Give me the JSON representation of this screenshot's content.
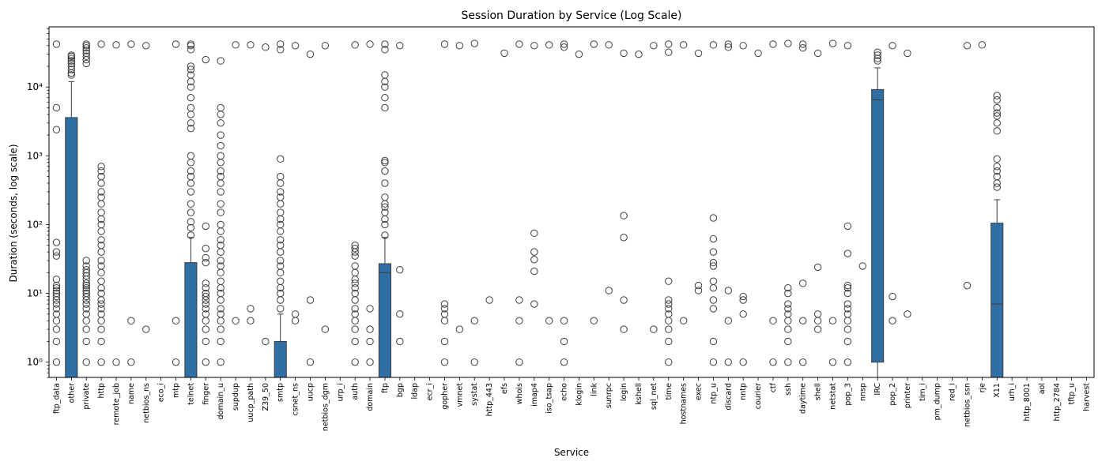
{
  "chart_data": {
    "type": "box",
    "title": "Session Duration by Service (Log Scale)",
    "xlabel": "Service",
    "ylabel": "Duration (seconds, log scale)",
    "y_scale": "log",
    "ylim": [
      0.6,
      75000
    ],
    "y_ticks": [
      1,
      10,
      100,
      1000,
      10000
    ],
    "y_tick_labels": [
      "10⁰",
      "10¹",
      "10²",
      "10³",
      "10⁴"
    ],
    "box_color": "#2f6fa3",
    "categories": [
      "ftp_data",
      "other",
      "private",
      "http",
      "remote_job",
      "name",
      "netbios_ns",
      "eco_i",
      "mtp",
      "telnet",
      "finger",
      "domain_u",
      "supdup",
      "uucp_path",
      "Z39_50",
      "smtp",
      "csnet_ns",
      "uucp",
      "netbios_dgm",
      "urp_i",
      "auth",
      "domain",
      "ftp",
      "bgp",
      "ldap",
      "ecr_i",
      "gopher",
      "vmnet",
      "systat",
      "http_443",
      "efs",
      "whois",
      "imap4",
      "iso_tsap",
      "echo",
      "klogin",
      "link",
      "sunrpc",
      "login",
      "kshell",
      "sql_net",
      "time",
      "hostnames",
      "exec",
      "ntp_u",
      "discard",
      "nntp",
      "courier",
      "ctf",
      "ssh",
      "daytime",
      "shell",
      "netstat",
      "pop_3",
      "nnsp",
      "IRC",
      "pop_2",
      "printer",
      "tim_i",
      "pm_dump",
      "red_i",
      "netbios_ssn",
      "rje",
      "X11",
      "urh_i",
      "http_8001",
      "aol",
      "http_2784",
      "tftp_u",
      "harvest"
    ],
    "boxes": [
      {
        "category": "other",
        "q1": 0.6,
        "median": 0.6,
        "q3": 3600,
        "whisker_low": 0.6,
        "whisker_high": 12000
      },
      {
        "category": "telnet",
        "q1": 0.6,
        "median": 0.6,
        "q3": 28,
        "whisker_low": 0.6,
        "whisker_high": 65
      },
      {
        "category": "smtp",
        "q1": 0.6,
        "median": 0.6,
        "q3": 2,
        "whisker_low": 0.6,
        "whisker_high": 5
      },
      {
        "category": "ftp",
        "q1": 0.6,
        "median": 20,
        "q3": 27,
        "whisker_low": 0.6,
        "whisker_high": 65
      },
      {
        "category": "IRC",
        "q1": 1,
        "median": 6500,
        "q3": 9200,
        "whisker_low": 0.6,
        "whisker_high": 19000
      },
      {
        "category": "X11",
        "q1": 0.6,
        "median": 7,
        "q3": 105,
        "whisker_low": 0.6,
        "whisker_high": 230
      }
    ],
    "outliers": {
      "ftp_data": [
        1,
        2,
        3,
        4,
        5,
        6,
        7,
        8,
        9,
        10,
        11,
        12,
        13,
        16,
        35,
        40,
        55,
        2400,
        5000,
        42000
      ],
      "other": [
        15000,
        16000,
        18000,
        20000,
        22000,
        24000,
        26000,
        28000,
        29000
      ],
      "private": [
        1,
        2,
        3,
        4,
        5,
        6,
        7,
        8,
        9,
        10,
        11,
        12,
        13,
        14,
        16,
        18,
        20,
        22,
        25,
        30,
        22000,
        25000,
        28000,
        31000,
        34000,
        37000,
        40000,
        42000
      ],
      "http": [
        1,
        2,
        3,
        4,
        5,
        6,
        7,
        8,
        10,
        12,
        15,
        20,
        25,
        30,
        40,
        50,
        60,
        80,
        100,
        120,
        150,
        200,
        250,
        300,
        400,
        500,
        600,
        700,
        42000
      ],
      "remote_job": [
        1,
        41000
      ],
      "name": [
        1,
        4,
        42000
      ],
      "netbios_ns": [
        3,
        40000
      ],
      "mtp": [
        1,
        4,
        42000
      ],
      "telnet": [
        70,
        90,
        110,
        150,
        200,
        300,
        400,
        500,
        600,
        800,
        1000,
        2500,
        3000,
        4000,
        5000,
        7000,
        10000,
        12000,
        15000,
        18000,
        20000,
        35000,
        40000,
        42000
      ],
      "finger": [
        1,
        2,
        3,
        4,
        5,
        6,
        7,
        8,
        9,
        10,
        12,
        14,
        28,
        33,
        45,
        95,
        25000
      ],
      "domain_u": [
        1,
        2,
        3,
        4,
        5,
        6,
        8,
        10,
        12,
        15,
        20,
        25,
        30,
        40,
        50,
        60,
        80,
        100,
        150,
        200,
        300,
        400,
        500,
        600,
        800,
        1000,
        1400,
        2000,
        3000,
        4000,
        5000,
        24000
      ],
      "supdup": [
        4,
        41000
      ],
      "uucp_path": [
        4,
        6,
        41000
      ],
      "Z39_50": [
        2,
        38000
      ],
      "smtp": [
        6,
        8,
        10,
        12,
        15,
        20,
        25,
        30,
        40,
        50,
        60,
        80,
        100,
        120,
        150,
        200,
        250,
        300,
        400,
        500,
        900,
        35000,
        42000
      ],
      "csnet_ns": [
        4,
        5,
        40000
      ],
      "uucp": [
        1,
        8,
        30000
      ],
      "netbios_dgm": [
        3,
        40000
      ],
      "auth": [
        1,
        2,
        3,
        4,
        5,
        6,
        8,
        10,
        12,
        14,
        16,
        20,
        25,
        35,
        40,
        45,
        50,
        41000
      ],
      "domain": [
        1,
        2,
        3,
        6,
        42000
      ],
      "ftp": [
        70,
        100,
        120,
        150,
        180,
        200,
        250,
        400,
        600,
        800,
        850,
        5000,
        7000,
        10000,
        12000,
        15000,
        35000,
        42000
      ],
      "bgp": [
        2,
        5,
        22,
        40000
      ],
      "gopher": [
        1,
        2,
        4,
        5,
        6,
        7,
        42000
      ],
      "vmnet": [
        3,
        40000
      ],
      "systat": [
        1,
        4,
        43000
      ],
      "http_443": [
        8
      ],
      "efs": [
        31000
      ],
      "whois": [
        1,
        4,
        8,
        42000
      ],
      "imap4": [
        7,
        21,
        31,
        40,
        75,
        40000
      ],
      "iso_tsap": [
        4,
        41000
      ],
      "echo": [
        1,
        2,
        4,
        38000,
        42000
      ],
      "klogin": [
        30000
      ],
      "link": [
        4,
        42000
      ],
      "sunrpc": [
        11,
        41000
      ],
      "login": [
        3,
        8,
        65,
        135,
        31000
      ],
      "kshell": [
        30000
      ],
      "sql_net": [
        3,
        40000
      ],
      "time": [
        1,
        2,
        3,
        4,
        5,
        6,
        7,
        8,
        15,
        32000,
        42000
      ],
      "hostnames": [
        4,
        41000
      ],
      "exec": [
        11,
        13,
        31000
      ],
      "ntp_u": [
        1,
        2,
        6,
        8,
        12,
        15,
        25,
        28,
        40,
        62,
        125,
        41000
      ],
      "discard": [
        1,
        4,
        11,
        38000,
        42000
      ],
      "nntp": [
        1,
        5,
        8,
        9,
        40000
      ],
      "courier": [
        31000
      ],
      "ctf": [
        1,
        4,
        42000
      ],
      "ssh": [
        1,
        2,
        3,
        4,
        5,
        6,
        7,
        10,
        12,
        43000
      ],
      "daytime": [
        1,
        4,
        14,
        37000,
        42000
      ],
      "shell": [
        3,
        4,
        5,
        24,
        31000
      ],
      "netstat": [
        1,
        4,
        43000
      ],
      "pop_3": [
        1,
        2,
        3,
        4,
        5,
        6,
        7,
        10,
        12,
        13,
        38,
        95,
        40000
      ],
      "nnsp": [
        25
      ],
      "IRC": [
        24000,
        26000,
        29000,
        32000
      ],
      "pop_2": [
        4,
        9,
        40000
      ],
      "printer": [
        5,
        31000
      ],
      "netbios_ssn": [
        13,
        40000
      ],
      "rje": [
        41000
      ],
      "X11": [
        350,
        400,
        500,
        600,
        700,
        900,
        2300,
        3000,
        3800,
        4200,
        5000,
        6500,
        7500
      ]
    }
  }
}
